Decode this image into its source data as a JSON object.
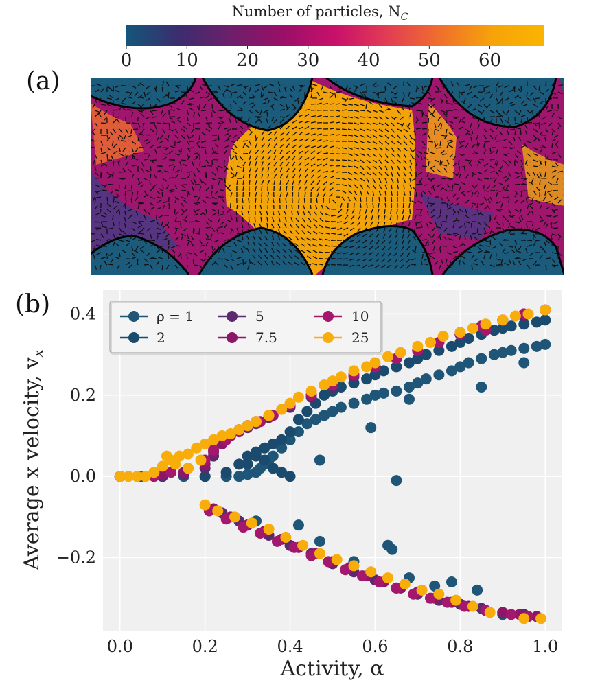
{
  "figure": {
    "panel_a_label": "(a)",
    "panel_b_label": "(b)"
  },
  "colorbar": {
    "label": "Number of particles, N",
    "label_sub": "C",
    "ticks": [
      "0",
      "10",
      "20",
      "30",
      "40",
      "50",
      "60"
    ],
    "range": [
      0,
      69
    ],
    "colormap": [
      "#145679",
      "#3b2d6e",
      "#6d1f6a",
      "#9a0f68",
      "#c9106a",
      "#e23d54",
      "#ef6f2c",
      "#f6a30a",
      "#fbb400"
    ]
  },
  "heatmap": {
    "description_colors": {
      "wall": "#1b5b7c",
      "low": "#4a3a86",
      "mid": "#a0166e",
      "high": "#f3a40b"
    }
  },
  "colors": {
    "rho_1": "#1f5577",
    "rho_2": "#1a4a6e",
    "rho_5": "#5b2a6e",
    "rho_7_5": "#8c1668",
    "rho_10": "#a3186c",
    "rho_25": "#f8ad0b",
    "plot_bg": "#f0f0f0",
    "grid": "#ffffff"
  },
  "chart_data": {
    "type": "scatter",
    "xlabel": "Activity, α",
    "ylabel": "Average x velocity, v",
    "ylabel_sub": "x",
    "xlim": [
      -0.04,
      1.04
    ],
    "ylim": [
      -0.38,
      0.46
    ],
    "xticks": [
      0.0,
      0.2,
      0.4,
      0.6,
      0.8,
      1.0
    ],
    "xtick_labels": [
      "0.0",
      "0.2",
      "0.4",
      "0.6",
      "0.8",
      "1.0"
    ],
    "yticks": [
      -0.2,
      0.0,
      0.2,
      0.4
    ],
    "ytick_labels": [
      "−0.2",
      "0.0",
      "0.2",
      "0.4"
    ],
    "grid": true,
    "legend_placement": "top-left",
    "legend": [
      {
        "label": "ρ = 1",
        "key": "rho_1"
      },
      {
        "label": "2",
        "key": "rho_2"
      },
      {
        "label": "5",
        "key": "rho_5"
      },
      {
        "label": "7.5",
        "key": "rho_7_5"
      },
      {
        "label": "10",
        "key": "rho_10"
      },
      {
        "label": "25",
        "key": "rho_25"
      }
    ],
    "series": [
      {
        "name": "ρ = 1",
        "key": "rho_1",
        "x": [
          0.0,
          0.05,
          0.1,
          0.15,
          0.2,
          0.25,
          0.28,
          0.3,
          0.32,
          0.33,
          0.34,
          0.35,
          0.36,
          0.38,
          0.4,
          0.42,
          0.44,
          0.46,
          0.48,
          0.5,
          0.52,
          0.55,
          0.58,
          0.6,
          0.62,
          0.65,
          0.68,
          0.7,
          0.72,
          0.75,
          0.78,
          0.8,
          0.82,
          0.85,
          0.88,
          0.9,
          0.92,
          0.95,
          0.98,
          1.0,
          0.47,
          0.59,
          0.65,
          0.68,
          0.85,
          0.95,
          0.32,
          0.42,
          0.47,
          0.55,
          0.63,
          0.64,
          0.68,
          0.74,
          0.78,
          0.84,
          0.9
        ],
        "y": [
          0.0,
          0.0,
          0.0,
          0.0,
          0.0,
          0.0,
          0.0,
          0.005,
          0.01,
          0.02,
          0.03,
          0.04,
          0.05,
          0.07,
          0.09,
          0.11,
          0.13,
          0.14,
          0.15,
          0.16,
          0.17,
          0.18,
          0.19,
          0.2,
          0.205,
          0.21,
          0.22,
          0.23,
          0.24,
          0.25,
          0.26,
          0.27,
          0.28,
          0.29,
          0.3,
          0.305,
          0.31,
          0.315,
          0.32,
          0.325,
          0.04,
          0.12,
          -0.01,
          0.19,
          0.22,
          0.28,
          -0.11,
          -0.12,
          -0.16,
          -0.21,
          -0.17,
          -0.18,
          -0.25,
          -0.27,
          -0.26,
          -0.28,
          -0.34
        ]
      },
      {
        "name": "2",
        "key": "rho_2",
        "x": [
          0.0,
          0.1,
          0.2,
          0.25,
          0.28,
          0.3,
          0.32,
          0.34,
          0.36,
          0.38,
          0.4,
          0.42,
          0.44,
          0.46,
          0.48,
          0.5,
          0.52,
          0.55,
          0.58,
          0.6,
          0.62,
          0.65,
          0.68,
          0.7,
          0.72,
          0.75,
          0.78,
          0.8,
          0.82,
          0.85,
          0.88,
          0.9,
          0.92,
          0.95,
          0.98,
          1.0,
          0.3,
          0.32,
          0.34,
          0.36,
          0.38,
          0.4
        ],
        "y": [
          0.0,
          0.0,
          0.0,
          0.01,
          0.03,
          0.05,
          0.06,
          0.07,
          0.08,
          0.09,
          0.11,
          0.14,
          0.16,
          0.18,
          0.2,
          0.21,
          0.22,
          0.23,
          0.24,
          0.25,
          0.26,
          0.27,
          0.28,
          0.29,
          0.3,
          0.31,
          0.32,
          0.33,
          0.34,
          0.35,
          0.36,
          0.365,
          0.37,
          0.375,
          0.38,
          0.385,
          0.03,
          0.05,
          0.04,
          0.02,
          0.01,
          0.0
        ]
      },
      {
        "name": "5",
        "key": "rho_5",
        "x": [
          0.0,
          0.1,
          0.15,
          0.2,
          0.22,
          0.24,
          0.26,
          0.28,
          0.3,
          0.32,
          0.35,
          0.4,
          0.45,
          0.5,
          0.55,
          0.6,
          0.65,
          0.7,
          0.75,
          0.8,
          0.85,
          0.9,
          0.95,
          1.0,
          0.24,
          0.28,
          0.3,
          0.35,
          0.4,
          0.45,
          0.5,
          0.55,
          0.6,
          0.65,
          0.7,
          0.75,
          0.8,
          0.85,
          0.9,
          0.95
        ],
        "y": [
          0.0,
          0.0,
          0.005,
          0.02,
          0.05,
          0.08,
          0.1,
          0.11,
          0.12,
          0.13,
          0.145,
          0.17,
          0.195,
          0.22,
          0.245,
          0.27,
          0.29,
          0.31,
          0.33,
          0.35,
          0.37,
          0.385,
          0.395,
          0.41,
          -0.09,
          -0.11,
          -0.12,
          -0.145,
          -0.17,
          -0.19,
          -0.215,
          -0.235,
          -0.255,
          -0.275,
          -0.29,
          -0.305,
          -0.315,
          -0.325,
          -0.335,
          -0.34
        ]
      },
      {
        "name": "7.5",
        "key": "rho_7_5",
        "x": [
          0.0,
          0.1,
          0.15,
          0.2,
          0.22,
          0.24,
          0.26,
          0.28,
          0.3,
          0.32,
          0.35,
          0.4,
          0.45,
          0.5,
          0.55,
          0.6,
          0.65,
          0.7,
          0.75,
          0.8,
          0.85,
          0.9,
          0.95,
          1.0,
          0.22,
          0.26,
          0.3,
          0.34,
          0.38,
          0.42,
          0.46,
          0.5,
          0.54,
          0.58,
          0.62,
          0.66,
          0.7,
          0.74,
          0.78,
          0.82,
          0.86,
          0.9,
          0.94,
          0.98
        ],
        "y": [
          0.0,
          0.005,
          0.01,
          0.03,
          0.06,
          0.08,
          0.1,
          0.115,
          0.125,
          0.135,
          0.15,
          0.175,
          0.2,
          0.225,
          0.25,
          0.27,
          0.29,
          0.31,
          0.33,
          0.35,
          0.37,
          0.385,
          0.4,
          0.41,
          -0.08,
          -0.1,
          -0.12,
          -0.135,
          -0.155,
          -0.175,
          -0.19,
          -0.21,
          -0.225,
          -0.245,
          -0.26,
          -0.275,
          -0.285,
          -0.3,
          -0.31,
          -0.32,
          -0.33,
          -0.335,
          -0.34,
          -0.345
        ]
      },
      {
        "name": "10",
        "key": "rho_10",
        "x": [
          0.0,
          0.08,
          0.12,
          0.16,
          0.2,
          0.22,
          0.25,
          0.28,
          0.3,
          0.33,
          0.36,
          0.4,
          0.45,
          0.5,
          0.55,
          0.6,
          0.65,
          0.7,
          0.75,
          0.8,
          0.85,
          0.9,
          0.95,
          1.0,
          0.21,
          0.25,
          0.29,
          0.33,
          0.37,
          0.41,
          0.45,
          0.49,
          0.53,
          0.57,
          0.61,
          0.65,
          0.69,
          0.73,
          0.77,
          0.81,
          0.86,
          0.92,
          0.96,
          0.86
        ],
        "y": [
          0.0,
          0.0,
          0.01,
          0.02,
          0.04,
          0.065,
          0.09,
          0.11,
          0.125,
          0.135,
          0.15,
          0.175,
          0.2,
          0.225,
          0.25,
          0.27,
          0.29,
          0.31,
          0.33,
          0.35,
          0.37,
          0.385,
          0.4,
          0.41,
          -0.085,
          -0.105,
          -0.125,
          -0.14,
          -0.16,
          -0.175,
          -0.195,
          -0.21,
          -0.23,
          -0.245,
          -0.26,
          -0.275,
          -0.29,
          -0.3,
          -0.31,
          -0.32,
          -0.33,
          -0.34,
          -0.345,
          0.36
        ]
      },
      {
        "name": "25",
        "key": "rho_25",
        "x": [
          0.0,
          0.02,
          0.04,
          0.06,
          0.08,
          0.1,
          0.12,
          0.14,
          0.16,
          0.18,
          0.2,
          0.22,
          0.24,
          0.26,
          0.28,
          0.3,
          0.32,
          0.35,
          0.38,
          0.4,
          0.42,
          0.45,
          0.48,
          0.5,
          0.52,
          0.55,
          0.58,
          0.6,
          0.63,
          0.66,
          0.7,
          0.73,
          0.76,
          0.8,
          0.83,
          0.86,
          0.9,
          0.93,
          0.96,
          1.0,
          0.11,
          0.13,
          0.16,
          0.19,
          0.2,
          0.23,
          0.27,
          0.31,
          0.35,
          0.39,
          0.43,
          0.47,
          0.51,
          0.55,
          0.59,
          0.63,
          0.67,
          0.71,
          0.75,
          0.79,
          0.83,
          0.87,
          0.95,
          0.99
        ],
        "y": [
          0.0,
          0.0,
          0.0,
          0.0,
          0.01,
          0.025,
          0.04,
          0.05,
          0.055,
          0.07,
          0.08,
          0.09,
          0.1,
          0.105,
          0.115,
          0.125,
          0.135,
          0.15,
          0.165,
          0.18,
          0.195,
          0.21,
          0.225,
          0.235,
          0.245,
          0.26,
          0.27,
          0.28,
          0.295,
          0.305,
          0.32,
          0.33,
          0.345,
          0.355,
          0.365,
          0.375,
          0.385,
          0.395,
          0.4,
          0.41,
          0.05,
          0.03,
          0.02,
          0.04,
          -0.07,
          -0.085,
          -0.1,
          -0.115,
          -0.13,
          -0.15,
          -0.17,
          -0.19,
          -0.205,
          -0.22,
          -0.235,
          -0.25,
          -0.265,
          -0.28,
          -0.29,
          -0.305,
          -0.32,
          -0.335,
          -0.35,
          -0.35
        ]
      }
    ]
  }
}
